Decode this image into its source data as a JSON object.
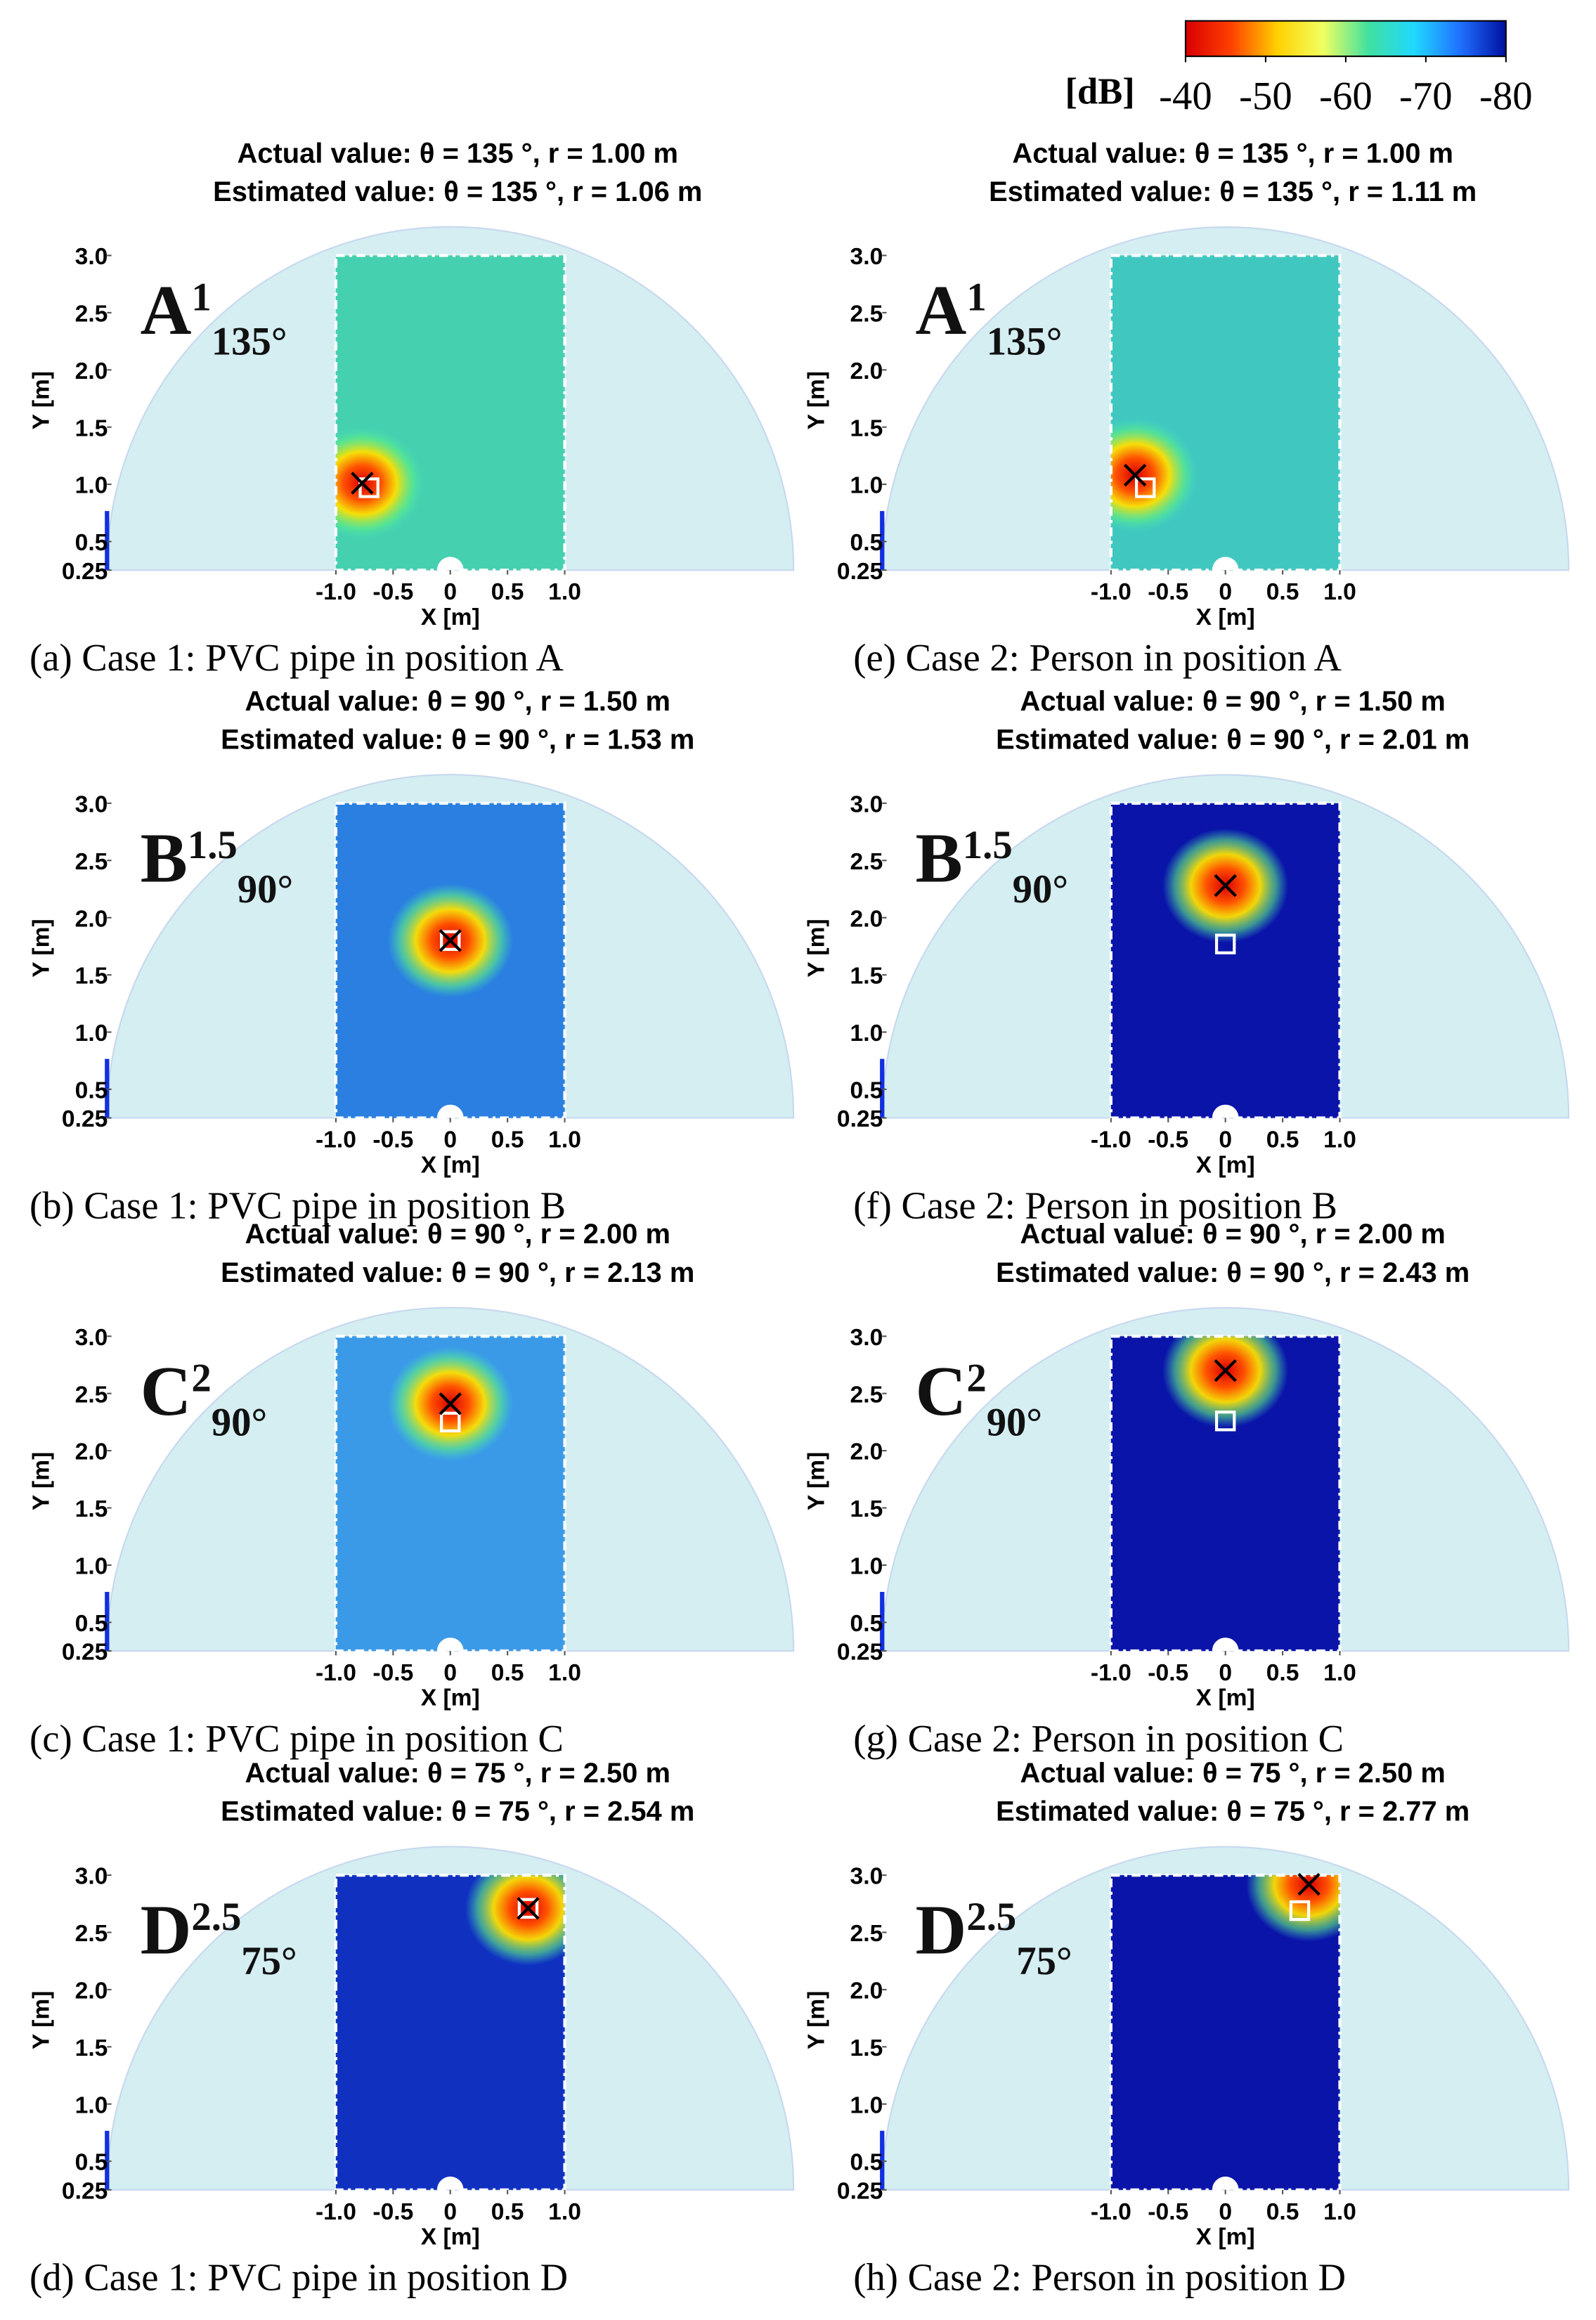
{
  "colorbar": {
    "label": "[dB]",
    "lim": [
      -40,
      -80
    ],
    "ticks": [
      -40,
      -50,
      -60,
      -70,
      -80
    ],
    "colors": [
      "#d80000",
      "#ff4000",
      "#ffd000",
      "#f0ff60",
      "#40e0a0",
      "#20d8ff",
      "#2070ff",
      "#0010a0"
    ]
  },
  "chart_data": [
    {
      "type": "heatmap",
      "title": "Actual value: θ = 135 °, r = 1.00 m",
      "subtitle": "Estimated value: θ = 135 °, r = 1.06 m",
      "caption": "(a) Case 1: PVC pipe in position A",
      "position_label": {
        "letter": "A",
        "sup": "1",
        "sub": "135°"
      },
      "xlabel": "X [m]",
      "ylabel": "Y [m]",
      "xlim": [
        -3,
        3
      ],
      "ylim": [
        0.25,
        3.25
      ],
      "xticks": [
        {
          "value": -1,
          "label": "-1.0"
        },
        -0.5,
        0,
        0.5,
        {
          "value": 1,
          "label": "1.0"
        }
      ],
      "yticks": [
        0.25,
        0.5,
        {
          "value": 1,
          "label": "1.0"
        },
        1.5,
        {
          "value": 2,
          "label": "2.0"
        },
        2.5,
        {
          "value": 3,
          "label": "3.0"
        }
      ],
      "actual": {
        "x": -0.71,
        "y": 0.97
      },
      "estimated": {
        "x": -0.77,
        "y": 1.01
      },
      "field_color": "#45d0b0"
    },
    {
      "type": "heatmap",
      "title": "Actual value: θ = 90 °, r = 1.50 m",
      "subtitle": "Estimated value: θ = 90 °, r = 1.53 m",
      "caption": "(b) Case 1: PVC pipe in position B",
      "position_label": {
        "letter": "B",
        "sup": "1.5",
        "sub": "90°"
      },
      "xlabel": "X [m]",
      "ylabel": "Y [m]",
      "xlim": [
        -3,
        3
      ],
      "ylim": [
        0.25,
        3.25
      ],
      "xticks": [
        {
          "value": -1,
          "label": "-1.0"
        },
        -0.5,
        0,
        0.5,
        {
          "value": 1,
          "label": "1.0"
        }
      ],
      "yticks": [
        0.25,
        0.5,
        {
          "value": 1,
          "label": "1.0"
        },
        1.5,
        {
          "value": 2,
          "label": "2.0"
        },
        2.5,
        {
          "value": 3,
          "label": "3.0"
        }
      ],
      "actual": {
        "x": 0,
        "y": 1.8
      },
      "estimated": {
        "x": 0,
        "y": 1.8
      },
      "field_color": "#2a7fe0"
    },
    {
      "type": "heatmap",
      "title": "Actual value: θ = 90 °, r = 2.00 m",
      "subtitle": "Estimated value: θ = 90 °, r = 2.13 m",
      "caption": "(c) Case 1: PVC pipe in position C",
      "position_label": {
        "letter": "C",
        "sup": "2",
        "sub": "90°"
      },
      "xlabel": "X [m]",
      "ylabel": "Y [m]",
      "xlim": [
        -3,
        3
      ],
      "ylim": [
        0.25,
        3.25
      ],
      "xticks": [
        {
          "value": -1,
          "label": "-1.0"
        },
        -0.5,
        0,
        0.5,
        {
          "value": 1,
          "label": "1.0"
        }
      ],
      "yticks": [
        0.25,
        0.5,
        {
          "value": 1,
          "label": "1.0"
        },
        1.5,
        {
          "value": 2,
          "label": "2.0"
        },
        2.5,
        {
          "value": 3,
          "label": "3.0"
        }
      ],
      "actual": {
        "x": 0,
        "y": 2.25
      },
      "estimated": {
        "x": 0,
        "y": 2.41
      },
      "field_color": "#3a9ae8"
    },
    {
      "type": "heatmap",
      "title": "Actual value: θ = 75 °, r = 2.50 m",
      "subtitle": "Estimated value: θ = 75 °, r = 2.54 m",
      "caption": "(d) Case 1: PVC pipe in position D",
      "position_label": {
        "letter": "D",
        "sup": "2.5",
        "sub": "75°"
      },
      "xlabel": "X [m]",
      "ylabel": "Y [m]",
      "xlim": [
        -3,
        3
      ],
      "ylim": [
        0.25,
        3.25
      ],
      "xticks": [
        {
          "value": -1,
          "label": "-1.0"
        },
        -0.5,
        0,
        0.5,
        {
          "value": 1,
          "label": "1.0"
        }
      ],
      "yticks": [
        0.25,
        0.5,
        {
          "value": 1,
          "label": "1.0"
        },
        1.5,
        {
          "value": 2,
          "label": "2.0"
        },
        2.5,
        {
          "value": 3,
          "label": "3.0"
        }
      ],
      "actual": {
        "x": 0.68,
        "y": 2.71
      },
      "estimated": {
        "x": 0.68,
        "y": 2.71
      },
      "field_color": "#1030c0"
    },
    {
      "type": "heatmap",
      "title": "Actual value: θ = 135 °, r = 1.00 m",
      "subtitle": "Estimated value: θ = 135 °, r = 1.11 m",
      "caption": "(e) Case 2: Person in position A",
      "position_label": {
        "letter": "A",
        "sup": "1",
        "sub": "135°"
      },
      "xlabel": "X [m]",
      "ylabel": "Y [m]",
      "xlim": [
        -3,
        3
      ],
      "ylim": [
        0.25,
        3.25
      ],
      "xticks": [
        {
          "value": -1,
          "label": "-1.0"
        },
        -0.5,
        0,
        0.5,
        {
          "value": 1,
          "label": "1.0"
        }
      ],
      "yticks": [
        0.25,
        0.5,
        {
          "value": 1,
          "label": "1.0"
        },
        1.5,
        {
          "value": 2,
          "label": "2.0"
        },
        2.5,
        {
          "value": 3,
          "label": "3.0"
        }
      ],
      "actual": {
        "x": -0.7,
        "y": 0.97
      },
      "estimated": {
        "x": -0.79,
        "y": 1.08
      },
      "field_color": "#40c8c0"
    },
    {
      "type": "heatmap",
      "title": "Actual value: θ = 90 °, r = 1.50 m",
      "subtitle": "Estimated value: θ = 90 °, r = 2.01 m",
      "caption": "(f) Case 2: Person in position B",
      "position_label": {
        "letter": "B",
        "sup": "1.5",
        "sub": "90°"
      },
      "xlabel": "X [m]",
      "ylabel": "Y [m]",
      "xlim": [
        -3,
        3
      ],
      "ylim": [
        0.25,
        3.25
      ],
      "xticks": [
        {
          "value": -1,
          "label": "-1.0"
        },
        -0.5,
        0,
        0.5,
        {
          "value": 1,
          "label": "1.0"
        }
      ],
      "yticks": [
        0.25,
        0.5,
        {
          "value": 1,
          "label": "1.0"
        },
        1.5,
        {
          "value": 2,
          "label": "2.0"
        },
        2.5,
        {
          "value": 3,
          "label": "3.0"
        }
      ],
      "actual": {
        "x": 0,
        "y": 1.77
      },
      "estimated": {
        "x": 0,
        "y": 2.28
      },
      "field_color": "#0a14a8"
    },
    {
      "type": "heatmap",
      "title": "Actual value: θ = 90 °, r = 2.00 m",
      "subtitle": "Estimated value: θ = 90 °, r = 2.43 m",
      "caption": "(g) Case 2: Person in position C",
      "position_label": {
        "letter": "C",
        "sup": "2",
        "sub": "90°"
      },
      "xlabel": "X [m]",
      "ylabel": "Y [m]",
      "xlim": [
        -3,
        3
      ],
      "ylim": [
        0.25,
        3.25
      ],
      "xticks": [
        {
          "value": -1,
          "label": "-1.0"
        },
        -0.5,
        0,
        0.5,
        {
          "value": 1,
          "label": "1.0"
        }
      ],
      "yticks": [
        0.25,
        0.5,
        {
          "value": 1,
          "label": "1.0"
        },
        1.5,
        {
          "value": 2,
          "label": "2.0"
        },
        2.5,
        {
          "value": 3,
          "label": "3.0"
        }
      ],
      "actual": {
        "x": 0,
        "y": 2.26
      },
      "estimated": {
        "x": 0,
        "y": 2.7
      },
      "field_color": "#0a14a8"
    },
    {
      "type": "heatmap",
      "title": "Actual value: θ = 75 °, r = 2.50 m",
      "subtitle": "Estimated value: θ = 75 °, r = 2.77 m",
      "caption": "(h) Case 2: Person in position D",
      "position_label": {
        "letter": "D",
        "sup": "2.5",
        "sub": "75°"
      },
      "xlabel": "X [m]",
      "ylabel": "Y [m]",
      "xlim": [
        -3,
        3
      ],
      "ylim": [
        0.25,
        3.25
      ],
      "xticks": [
        {
          "value": -1,
          "label": "-1.0"
        },
        -0.5,
        0,
        0.5,
        {
          "value": 1,
          "label": "1.0"
        }
      ],
      "yticks": [
        0.25,
        0.5,
        {
          "value": 1,
          "label": "1.0"
        },
        1.5,
        {
          "value": 2,
          "label": "2.0"
        },
        2.5,
        {
          "value": 3,
          "label": "3.0"
        }
      ],
      "actual": {
        "x": 0.65,
        "y": 2.69
      },
      "estimated": {
        "x": 0.73,
        "y": 2.92
      },
      "field_color": "#0a14a8"
    }
  ]
}
